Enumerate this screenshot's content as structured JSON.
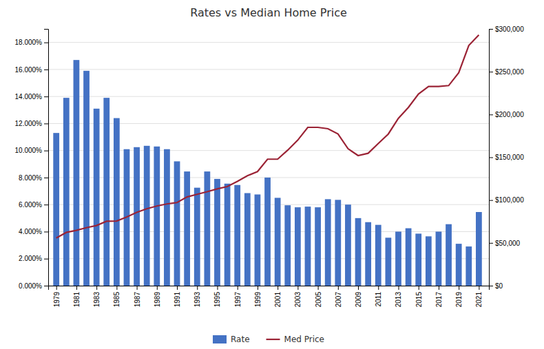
{
  "chart_data": {
    "type": "bar",
    "title": "Rates vs Median Home Price",
    "x": [
      1979,
      1980,
      1981,
      1982,
      1983,
      1984,
      1985,
      1986,
      1987,
      1988,
      1989,
      1990,
      1991,
      1992,
      1993,
      1994,
      1995,
      1996,
      1997,
      1998,
      1999,
      2000,
      2001,
      2002,
      2003,
      2004,
      2005,
      2006,
      2007,
      2008,
      2009,
      2010,
      2011,
      2012,
      2013,
      2014,
      2015,
      2016,
      2017,
      2018,
      2019,
      2020,
      2021
    ],
    "series": [
      {
        "name": "Rate",
        "type": "bar",
        "color": "#4472C4",
        "values": [
          0.113,
          0.139,
          0.167,
          0.159,
          0.131,
          0.139,
          0.124,
          0.101,
          0.1025,
          0.1035,
          0.103,
          0.101,
          0.092,
          0.0845,
          0.0725,
          0.0845,
          0.079,
          0.0755,
          0.0745,
          0.0685,
          0.0675,
          0.08,
          0.065,
          0.0595,
          0.058,
          0.0585,
          0.058,
          0.064,
          0.0635,
          0.06,
          0.05,
          0.047,
          0.045,
          0.0355,
          0.04,
          0.0425,
          0.0385,
          0.0365,
          0.04,
          0.0455,
          0.031,
          0.029,
          0.0545
        ]
      },
      {
        "name": "Med Price",
        "type": "line",
        "color": "#9B2335",
        "axis": "y2",
        "values": [
          55700,
          62200,
          64600,
          67800,
          70300,
          75300,
          75500,
          80300,
          85600,
          89900,
          93100,
          95500,
          97100,
          103700,
          106800,
          109800,
          113100,
          115800,
          121800,
          128400,
          133300,
          147800,
          147800,
          158300,
          170000,
          185000,
          185000,
          183400,
          177300,
          160000,
          152000,
          154700,
          166100,
          177200,
          195500,
          208300,
          223900,
          232800,
          232800,
          233800,
          248800,
          280700,
          293000
        ]
      }
    ],
    "xlim": [
      1978.2,
      2022.0
    ],
    "xticks": [
      1979,
      1981,
      1983,
      1985,
      1987,
      1989,
      1991,
      1993,
      1995,
      1997,
      1999,
      2001,
      2003,
      2005,
      2007,
      2009,
      2011,
      2013,
      2015,
      2017,
      2019,
      2021
    ],
    "ylim": [
      0,
      0.19
    ],
    "yticks": [
      {
        "value": 0.0,
        "label": "0.000%"
      },
      {
        "value": 0.02,
        "label": "2.000%"
      },
      {
        "value": 0.04,
        "label": "4.000%"
      },
      {
        "value": 0.06,
        "label": "6.000%"
      },
      {
        "value": 0.08,
        "label": "8.000%"
      },
      {
        "value": 0.1,
        "label": "10.000%"
      },
      {
        "value": 0.12,
        "label": "12.000%"
      },
      {
        "value": 0.14,
        "label": "14.000%"
      },
      {
        "value": 0.16,
        "label": "16.000%"
      },
      {
        "value": 0.18,
        "label": "18.000%"
      }
    ],
    "y2lim": [
      0,
      300000
    ],
    "y2ticks": [
      {
        "value": 0,
        "label": "$0"
      },
      {
        "value": 50000,
        "label": "$50,000"
      },
      {
        "value": 100000,
        "label": "$100,000"
      },
      {
        "value": 150000,
        "label": "$150,000"
      },
      {
        "value": 200000,
        "label": "$200,000"
      },
      {
        "value": 250000,
        "label": "$250,000"
      },
      {
        "value": 300000,
        "label": "$300,000"
      }
    ],
    "grid": true,
    "legend": "bottom"
  }
}
